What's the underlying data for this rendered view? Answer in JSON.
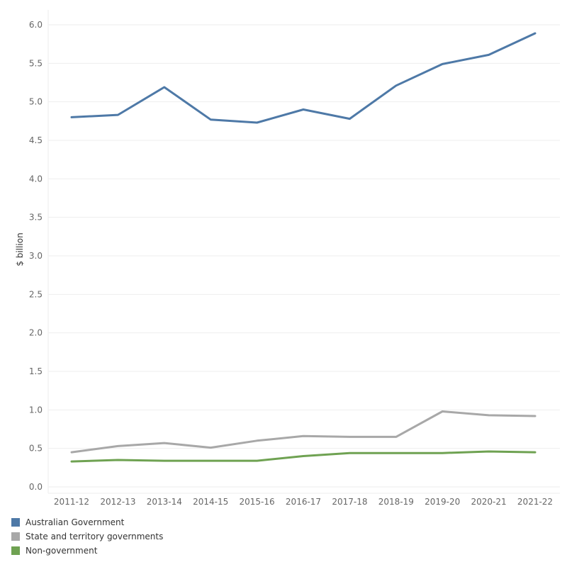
{
  "chart_data": {
    "type": "line",
    "title": "",
    "xlabel": "",
    "ylabel": "$ billion",
    "categories": [
      "2011-12",
      "2012-13",
      "2013-14",
      "2014-15",
      "2015-16",
      "2016-17",
      "2017-18",
      "2018-19",
      "2019-20",
      "2020-21",
      "2021-22"
    ],
    "ylim": [
      0,
      6.0
    ],
    "yticks": [
      "0.0",
      "0.5",
      "1.0",
      "1.5",
      "2.0",
      "2.5",
      "3.0",
      "3.5",
      "4.0",
      "4.5",
      "5.0",
      "5.5",
      "6.0"
    ],
    "grid": true,
    "legend_position": "bottom-left",
    "series": [
      {
        "name": "Australian Government",
        "color": "#4e79a7",
        "values": [
          4.8,
          4.83,
          5.19,
          4.77,
          4.73,
          4.9,
          4.78,
          5.21,
          5.49,
          5.61,
          5.89
        ]
      },
      {
        "name": "State and territory governments",
        "color": "#a8a8a8",
        "values": [
          0.45,
          0.53,
          0.57,
          0.51,
          0.6,
          0.66,
          0.65,
          0.65,
          0.98,
          0.93,
          0.92
        ]
      },
      {
        "name": "Non-government",
        "color": "#6fa252",
        "values": [
          0.33,
          0.35,
          0.34,
          0.34,
          0.34,
          0.4,
          0.44,
          0.44,
          0.44,
          0.46,
          0.45
        ]
      }
    ]
  }
}
